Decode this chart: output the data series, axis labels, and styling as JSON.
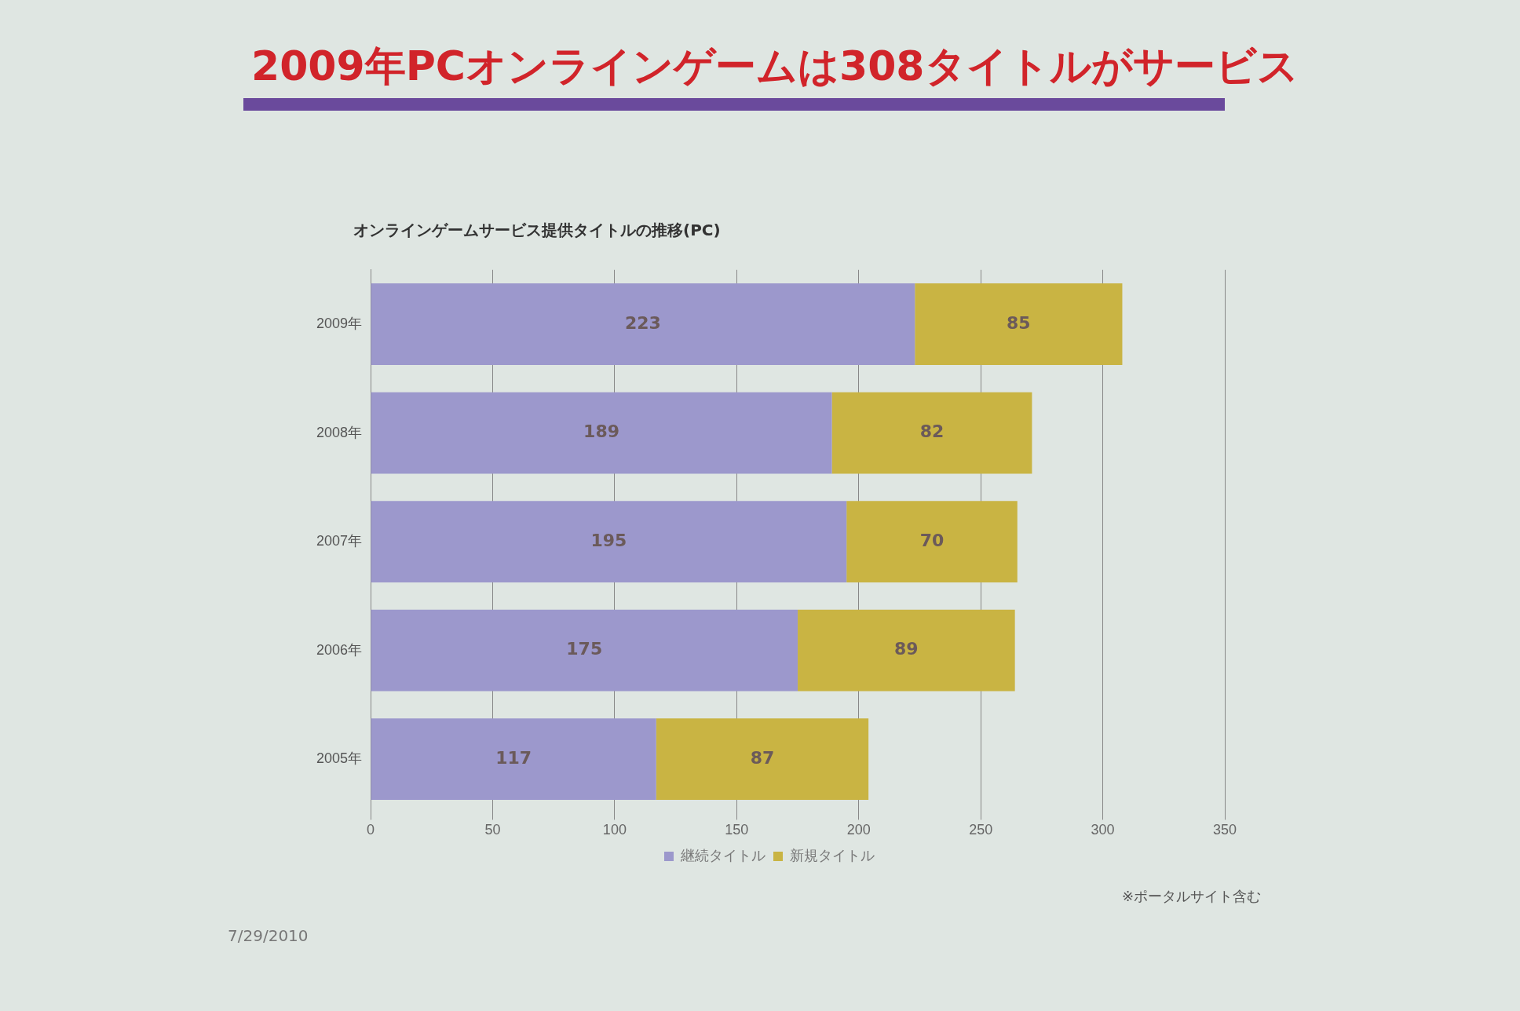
{
  "chart_data": {
    "type": "bar",
    "orientation": "horizontal",
    "stacked": true,
    "title": "2009年PCオンラインゲームは308タイトルがサービス",
    "subtitle": "オンラインゲームサービス提供タイトルの推移(PC)",
    "categories": [
      "2009年",
      "2008年",
      "2007年",
      "2006年",
      "2005年"
    ],
    "series": [
      {
        "name": "継続タイトル",
        "color": "#9c98cc",
        "values": [
          223,
          189,
          195,
          175,
          117
        ]
      },
      {
        "name": "新規タイトル",
        "color": "#c9b443",
        "values": [
          85,
          82,
          70,
          89,
          87
        ]
      }
    ],
    "xlim": [
      0,
      350
    ],
    "xticks": [
      0,
      50,
      100,
      150,
      200,
      250,
      300,
      350
    ],
    "grid": "x",
    "legend": "bottom",
    "data_labels": true,
    "annotations": [
      "※ポータルサイト含む",
      "7/29/2010"
    ]
  }
}
